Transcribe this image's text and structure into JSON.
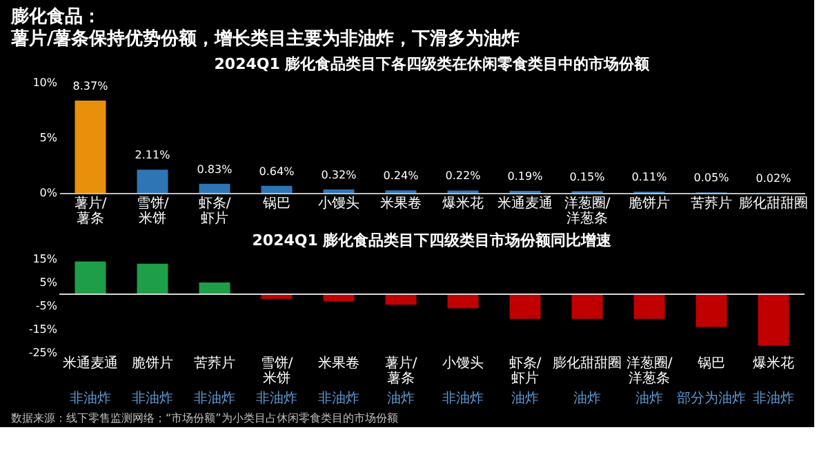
{
  "chart_data": [
    {
      "type": "other",
      "title": "膨化食品：",
      "subtitle": "薯片/薯条保持优势份额，增长类目主要为非油炸，下滑多为油炸"
    },
    {
      "type": "bar",
      "title": "2024Q1 膨化食品类目下各四级类在休闲零食类目中的市场份额",
      "categories": [
        "薯片/薯条",
        "雪饼/米饼",
        "虾条/虾片",
        "锅巴",
        "小馒头",
        "米果卷",
        "爆米花",
        "米通麦通",
        "洋葱圈/洋葱条",
        "脆饼片",
        "苦荞片",
        "膨化甜甜圈"
      ],
      "values": [
        8.37,
        2.11,
        0.83,
        0.64,
        0.32,
        0.24,
        0.22,
        0.19,
        0.15,
        0.11,
        0.05,
        0.02
      ],
      "value_labels": [
        "8.37%",
        "2.11%",
        "0.83%",
        "0.64%",
        "0.32%",
        "0.24%",
        "0.22%",
        "0.19%",
        "0.15%",
        "0.11%",
        "0.05%",
        "0.02%"
      ],
      "colors": [
        "#e8900c",
        "#2e75b6",
        "#2e75b6",
        "#2e75b6",
        "#2e75b6",
        "#2e75b6",
        "#2e75b6",
        "#2e75b6",
        "#2e75b6",
        "#2e75b6",
        "#2e75b6",
        "#2e75b6"
      ],
      "ylim": [
        0,
        10
      ],
      "yticks": [
        {
          "value": 0,
          "label": "0%"
        },
        {
          "value": 5,
          "label": "5%"
        },
        {
          "value": 10,
          "label": "10%"
        }
      ],
      "grid": false
    },
    {
      "type": "bar",
      "title": "2024Q1 膨化食品类目下四级类目市场份额同比增速",
      "categories": [
        "米通麦通",
        "脆饼片",
        "苦荞片",
        "雪饼/米饼",
        "米果卷",
        "薯片/薯条",
        "小馒头",
        "虾条/虾片",
        "膨化甜甜圈",
        "洋葱圈/洋葱条",
        "锅巴",
        "爆米花"
      ],
      "values": [
        14,
        13,
        5,
        -2,
        -3,
        -4.5,
        -6,
        -10.5,
        -10.5,
        -10.5,
        -14,
        -22
      ],
      "colors": [
        "#1e9e48",
        "#1e9e48",
        "#1e9e48",
        "#c00000",
        "#c00000",
        "#c00000",
        "#c00000",
        "#c00000",
        "#c00000",
        "#c00000",
        "#c00000",
        "#c00000"
      ],
      "ylim": [
        -25,
        15
      ],
      "yticks": [
        {
          "value": 15,
          "label": "15%"
        },
        {
          "value": 5,
          "label": "5%"
        },
        {
          "value": -5,
          "label": "-5%"
        },
        {
          "value": -15,
          "label": "-15%"
        },
        {
          "value": -25,
          "label": "-25%"
        }
      ],
      "ref_lines": [
        {
          "axis": "y",
          "value": 0,
          "color": "#d9d9d9"
        }
      ],
      "grid": false,
      "annotations": [
        "非油炸",
        "非油炸",
        "非油炸",
        "非油炸",
        "非油炸",
        "油炸",
        "非油炸",
        "油炸",
        "油炸",
        "油炸",
        "部分为油炸",
        "非油炸",
        "数据来源：线下零售监测网络；“市场份额”为小类目占休闲零食类目的市场份额"
      ]
    }
  ]
}
